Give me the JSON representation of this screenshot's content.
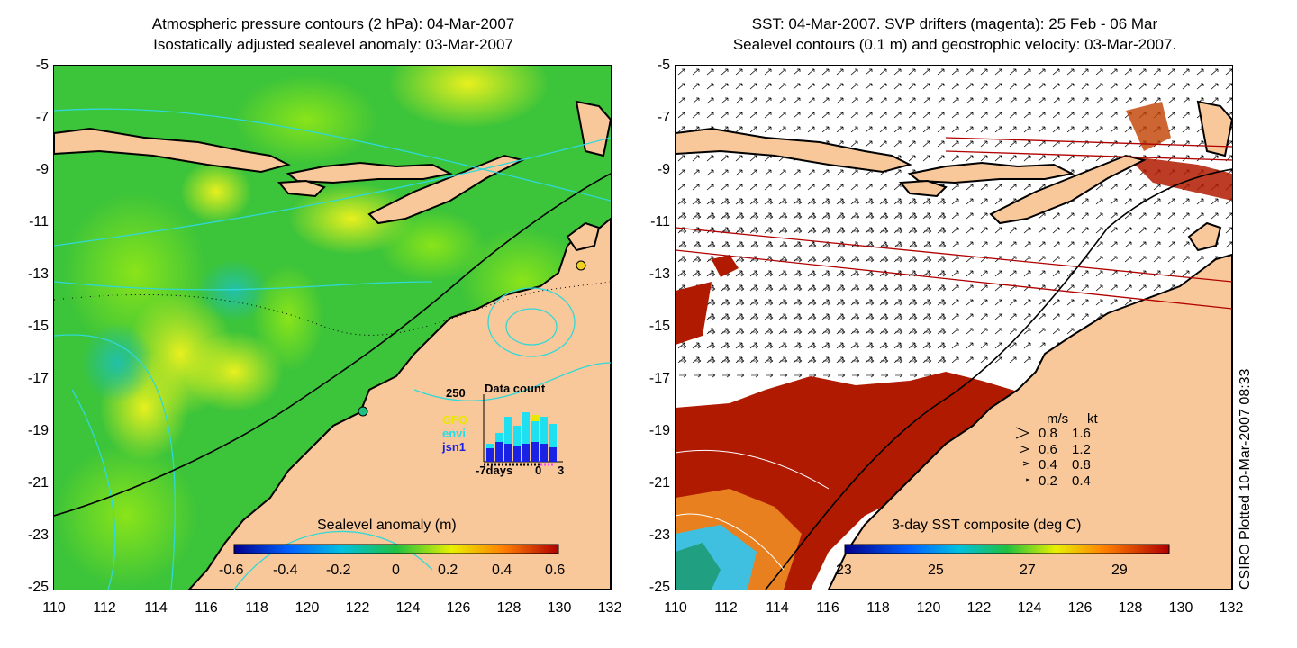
{
  "left_panel": {
    "title_line1": "Atmospheric pressure contours (2 hPa): 04-Mar-2007",
    "title_line2": "Isostatically adjusted sealevel anomaly: 03-Mar-2007",
    "colorbar_title": "Sealevel anomaly (m)",
    "colorbar_ticks": [
      "-0.6",
      "-0.4",
      "-0.2",
      "0",
      "0.2",
      "0.4",
      "0.6"
    ],
    "inset": {
      "max_label": "250",
      "title": "Data count",
      "series_labels": [
        "GFO",
        "envi",
        "jsn1"
      ],
      "series_colors": [
        "#e8e800",
        "#1ee0f0",
        "#1a22e6"
      ],
      "x_labels": [
        "-7days",
        "0",
        "3"
      ]
    }
  },
  "right_panel": {
    "title_line1": "SST: 04-Mar-2007. SVP drifters (magenta): 25 Feb - 06 Mar",
    "title_line2": "Sealevel contours (0.1 m) and geostrophic velocity: 03-Mar-2007.",
    "colorbar_title": "3-day SST composite (deg C)",
    "colorbar_ticks": [
      "23",
      "25",
      "27",
      "29"
    ],
    "speed_legend": {
      "header_ms": "m/s",
      "header_kt": "kt",
      "rows": [
        {
          "ms": "0.8",
          "kt": "1.6"
        },
        {
          "ms": "0.6",
          "kt": "1.2"
        },
        {
          "ms": "0.4",
          "kt": "0.8"
        },
        {
          "ms": "0.2",
          "kt": "0.4"
        }
      ]
    }
  },
  "axes": {
    "y_ticks": [
      "-5",
      "-7",
      "-9",
      "-11",
      "-13",
      "-15",
      "-17",
      "-19",
      "-21",
      "-23",
      "-25"
    ],
    "x_ticks": [
      "110",
      "112",
      "114",
      "116",
      "118",
      "120",
      "122",
      "124",
      "126",
      "128",
      "130",
      "132"
    ]
  },
  "credit": "CSIRO Plotted 10-Mar-2007 08:33",
  "colors": {
    "land": "#f9c89a",
    "ocean_green": "#3cc43a",
    "ocean_light": "#7fe020",
    "ocean_yellow": "#e6f01e",
    "ocean_cyan": "#28c8a0",
    "contour": "#30d8d8",
    "sst_red": "#b01a00",
    "drifter": "#b00000"
  }
}
